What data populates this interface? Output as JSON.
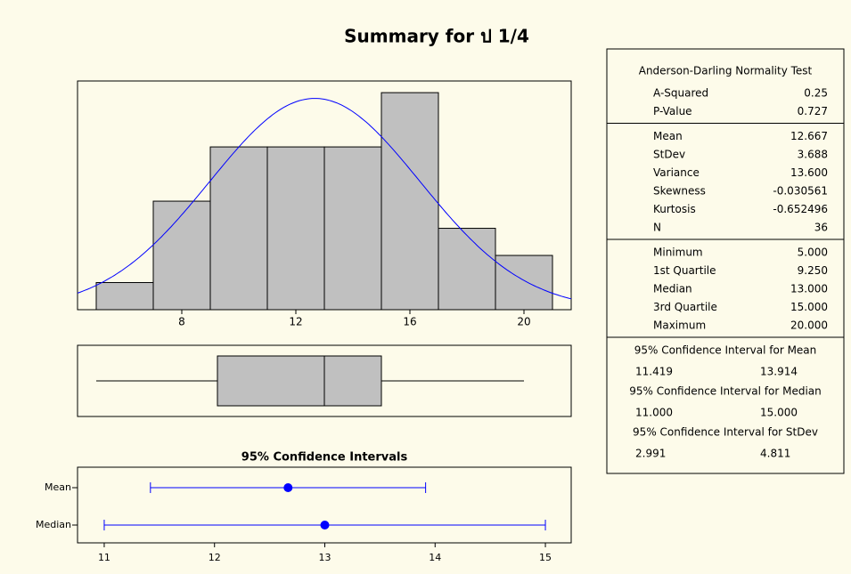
{
  "title": "Summary for ป 1/4",
  "chart_data": [
    {
      "type": "histogram",
      "bins": [
        5,
        7,
        9,
        11,
        13,
        15,
        17,
        19,
        21
      ],
      "values": [
        1,
        4,
        6,
        6,
        6,
        8,
        3,
        2
      ],
      "color": "#c0c0c0",
      "xlim": [
        4.344,
        21.656
      ],
      "ylim": [
        0,
        8.43
      ],
      "xticks": [
        8,
        12,
        16,
        20
      ],
      "normal_fit": {
        "mean": 12.667,
        "stdev": 3.688,
        "color": "#0000ff"
      }
    },
    {
      "type": "boxplot",
      "min": 5,
      "q1": 9.25,
      "median": 13,
      "q3": 15,
      "max": 20,
      "color": "#c0c0c0",
      "xlim": [
        4.344,
        21.656
      ]
    },
    {
      "type": "interval",
      "title": "95% Confidence Intervals",
      "categories": [
        "Mean",
        "Median"
      ],
      "estimates": [
        12.667,
        13
      ],
      "lower": [
        11.419,
        11
      ],
      "upper": [
        13.914,
        15
      ],
      "color": "#0000ff",
      "xlim": [
        10.758,
        15.234
      ],
      "xticks": [
        11,
        12,
        13,
        14,
        15
      ]
    }
  ],
  "summary_table": {
    "sections": [
      {
        "title": "Anderson-Darling Normality Test",
        "rows": [
          [
            "A-Squared",
            "0.25"
          ],
          [
            "P-Value",
            "0.727"
          ]
        ]
      },
      {
        "rows": [
          [
            "Mean",
            "12.667"
          ],
          [
            "StDev",
            "3.688"
          ],
          [
            "Variance",
            "13.600"
          ],
          [
            "Skewness",
            "-0.030561"
          ],
          [
            "Kurtosis",
            "-0.652496"
          ],
          [
            "N",
            "36"
          ]
        ]
      },
      {
        "rows": [
          [
            "Minimum",
            "5.000"
          ],
          [
            "1st Quartile",
            "9.250"
          ],
          [
            "Median",
            "13.000"
          ],
          [
            "3rd Quartile",
            "15.000"
          ],
          [
            "Maximum",
            "20.000"
          ]
        ]
      },
      {
        "title": "95% Confidence Interval for Mean",
        "rows": [
          [
            "11.419",
            "13.914"
          ]
        ]
      },
      {
        "title": "95% Confidence Interval for Median",
        "rows": [
          [
            "11.000",
            "15.000"
          ]
        ]
      },
      {
        "title": "95% Confidence Interval for StDev",
        "rows": [
          [
            "2.991",
            "4.811"
          ]
        ]
      }
    ]
  }
}
